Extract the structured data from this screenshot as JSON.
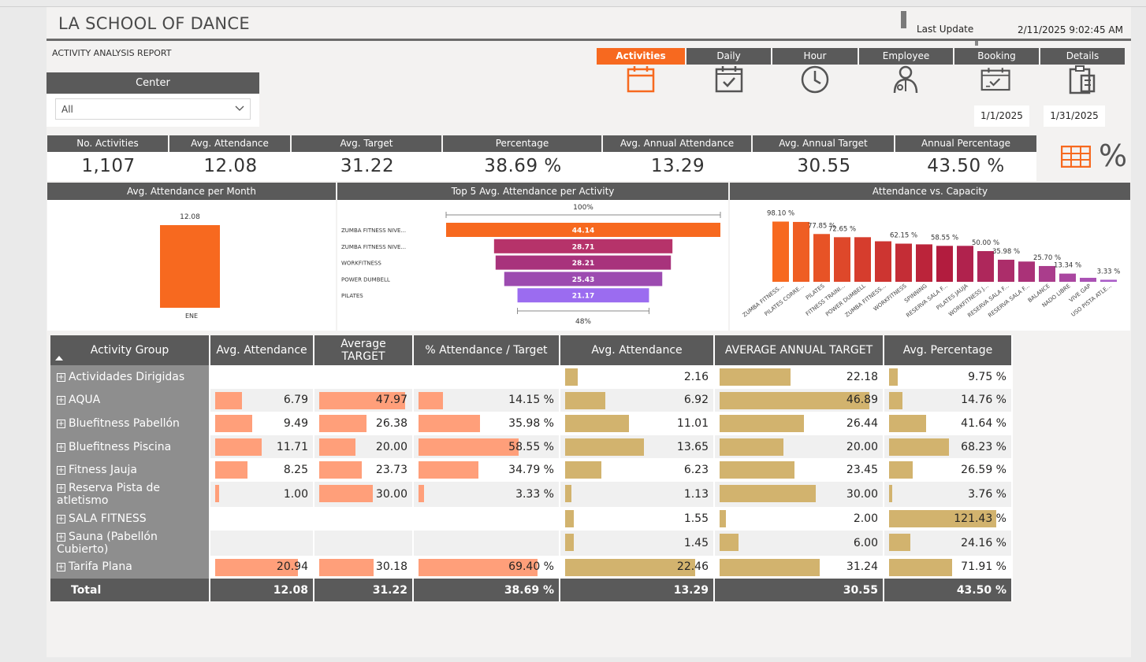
{
  "header": {
    "title": "LA SCHOOL OF DANCE",
    "subtitle": "ACTIVITY ANALYSIS REPORT",
    "last_update_label": "Last Update",
    "last_update_value": "2/11/2025 9:02:45 AM"
  },
  "center_filter": {
    "label": "Center",
    "value": "All"
  },
  "tabs": [
    {
      "label": "Activities",
      "icon": "calendar-icon",
      "active": true
    },
    {
      "label": "Daily",
      "icon": "calendar-check-icon",
      "active": false
    },
    {
      "label": "Hour",
      "icon": "clock-icon",
      "active": false
    },
    {
      "label": "Employee",
      "icon": "person-icon",
      "active": false
    },
    {
      "label": "Booking",
      "icon": "calendar-booking-icon",
      "active": false
    },
    {
      "label": "Details",
      "icon": "clipboard-icon",
      "active": false
    }
  ],
  "date_range": {
    "start": "1/1/2025",
    "end": "1/31/2025"
  },
  "kpis": [
    {
      "label": "No. Activities",
      "value": "1,107"
    },
    {
      "label": "Avg. Attendance",
      "value": "12.08"
    },
    {
      "label": "Avg. Target",
      "value": "31.22"
    },
    {
      "label": "Percentage",
      "value": "38.69 %"
    },
    {
      "label": "Avg. Annual Attendance",
      "value": "13.29"
    },
    {
      "label": "Avg. Annual Target",
      "value": "30.55"
    },
    {
      "label": "Annual Percentage",
      "value": "43.50 %"
    }
  ],
  "view_toggles": {
    "table_icon": "table-icon",
    "percent_icon": "percent-icon",
    "percent_symbol": "%"
  },
  "colors": {
    "accent": "#f7691f",
    "header_bg": "#5a5a5a",
    "bar_salmon": "#ff9f7a",
    "bar_tan": "#d2b36e"
  },
  "charts": {
    "monthly": {
      "title": "Avg. Attendance per Month",
      "chart_data": {
        "type": "bar",
        "categories": [
          "ENE"
        ],
        "values": [
          12.08
        ],
        "data_labels": [
          "12.08"
        ]
      }
    },
    "top5": {
      "title": "Top 5 Avg. Attendance per Activity",
      "top_label": "100%",
      "bottom_label": "48%",
      "chart_data": {
        "type": "bar",
        "categories": [
          "ZUMBA FITNESS NIVE...",
          "ZUMBA FITNESS NIVE...",
          "WORKFITNESS",
          "POWER DUMBELL",
          "PILATES"
        ],
        "values": [
          44.14,
          28.71,
          28.21,
          25.43,
          21.17
        ],
        "data_labels": [
          "44.14",
          "28.71",
          "28.21",
          "25.43",
          "21.17"
        ],
        "colors": [
          "#f7691f",
          "#b6336a",
          "#a8337c",
          "#9c4bb0",
          "#9b6cf0"
        ]
      }
    },
    "capacity": {
      "title": "Attendance vs. Capacity",
      "chart_data": {
        "type": "bar",
        "categories": [
          "ZUMBA FITNESS...",
          "PILATES CORRE...",
          "PILATES",
          "FITNESS TRAINI...",
          "POWER DUMBELL",
          "ZUMBA FITNESS...",
          "WORKFITNESS",
          "SPINNING",
          "RESERVA SALA F...",
          "PILATES JAUJA",
          "WORKFITNESS J...",
          "RESERVA SALA F...",
          "RESERVA SALA F...",
          "BALANCE",
          "NADO LIBRE",
          "VIVE GAP",
          "USO PISTA ATLE..."
        ],
        "values": [
          98.1,
          97.5,
          77.85,
          72.65,
          72.65,
          66.0,
          62.15,
          61.0,
          58.55,
          58.55,
          50.0,
          35.98,
          33.0,
          25.7,
          13.34,
          6.5,
          3.33
        ],
        "labels": [
          "98.10 %",
          "",
          "77.85 %",
          "72.65 %",
          "",
          "",
          "62.15 %",
          "",
          "58.55 %",
          "",
          "50.00 %",
          "35.98 %",
          "",
          "25.70 %",
          "13.34 %",
          "",
          "3.33 %"
        ],
        "ylim": [
          0,
          100
        ]
      }
    }
  },
  "table": {
    "columns": [
      "Activity Group",
      "Avg. Attendance",
      "Average TARGET",
      "% Attendance / Target",
      "Avg. Attendance",
      "AVERAGE ANNUAL TARGET",
      "Avg. Percentage"
    ],
    "rows": [
      {
        "name": "Actividades Dirigidas",
        "att": null,
        "tgt": null,
        "pct": null,
        "a_att": 2.16,
        "a_tgt": 22.18,
        "a_pct": 9.75,
        "d": [
          "",
          "",
          "",
          "2.16",
          "22.18",
          "9.75 %"
        ]
      },
      {
        "name": "AQUA",
        "att": 6.79,
        "tgt": 47.97,
        "pct": 14.15,
        "a_att": 6.92,
        "a_tgt": 46.89,
        "a_pct": 14.76,
        "d": [
          "6.79",
          "47.97",
          "14.15 %",
          "6.92",
          "46.89",
          "14.76 %"
        ]
      },
      {
        "name": "Bluefitness Pabellón",
        "att": 9.49,
        "tgt": 26.38,
        "pct": 35.98,
        "a_att": 11.01,
        "a_tgt": 26.44,
        "a_pct": 41.64,
        "d": [
          "9.49",
          "26.38",
          "35.98 %",
          "11.01",
          "26.44",
          "41.64 %"
        ]
      },
      {
        "name": "Bluefitness Piscina",
        "att": 11.71,
        "tgt": 20.0,
        "pct": 58.55,
        "a_att": 13.65,
        "a_tgt": 20.0,
        "a_pct": 68.23,
        "d": [
          "11.71",
          "20.00",
          "58.55 %",
          "13.65",
          "20.00",
          "68.23 %"
        ]
      },
      {
        "name": "Fitness Jauja",
        "att": 8.25,
        "tgt": 23.73,
        "pct": 34.79,
        "a_att": 6.23,
        "a_tgt": 23.45,
        "a_pct": 26.59,
        "d": [
          "8.25",
          "23.73",
          "34.79 %",
          "6.23",
          "23.45",
          "26.59 %"
        ]
      },
      {
        "name": "Reserva Pista de atletismo",
        "att": 1.0,
        "tgt": 30.0,
        "pct": 3.33,
        "a_att": 1.13,
        "a_tgt": 30.0,
        "a_pct": 3.76,
        "d": [
          "1.00",
          "30.00",
          "3.33 %",
          "1.13",
          "30.00",
          "3.76 %"
        ]
      },
      {
        "name": "SALA FITNESS",
        "att": null,
        "tgt": null,
        "pct": null,
        "a_att": 1.55,
        "a_tgt": 2.0,
        "a_pct": 121.43,
        "d": [
          "",
          "",
          "",
          "1.55",
          "2.00",
          "121.43 %"
        ]
      },
      {
        "name": "Sauna (Pabellón Cubierto)",
        "att": null,
        "tgt": null,
        "pct": null,
        "a_att": 1.45,
        "a_tgt": 6.0,
        "a_pct": 24.16,
        "d": [
          "",
          "",
          "",
          "1.45",
          "6.00",
          "24.16 %"
        ]
      },
      {
        "name": "Tarifa Plana",
        "att": 20.94,
        "tgt": 30.18,
        "pct": 69.4,
        "a_att": 22.46,
        "a_tgt": 31.24,
        "a_pct": 71.91,
        "d": [
          "20.94",
          "30.18",
          "69.40 %",
          "22.46",
          "31.24",
          "71.91 %"
        ]
      }
    ],
    "total": {
      "label": "Total",
      "values": [
        "12.08",
        "31.22",
        "38.69 %",
        "13.29",
        "30.55",
        "43.50 %"
      ]
    }
  }
}
